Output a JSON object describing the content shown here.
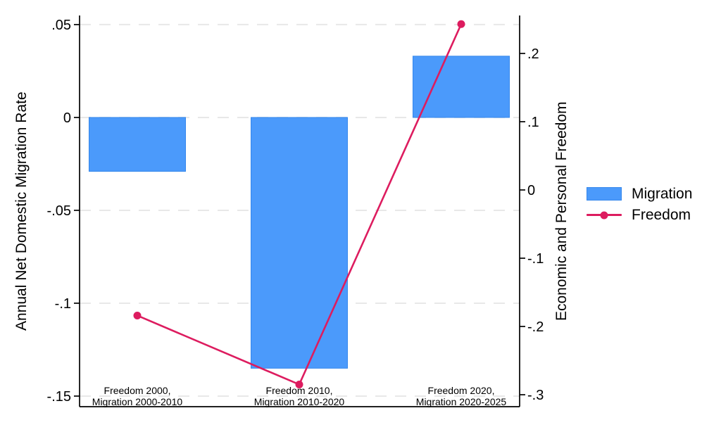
{
  "figure": {
    "background": "#ffffff",
    "text_color": "#000000"
  },
  "chart_data": {
    "type": "bar",
    "subtype": "combo-bar-line-dual-axis",
    "title": "",
    "categories": [
      [
        "Freedom 2000,",
        "Migration 2000-2010"
      ],
      [
        "Freedom 2010,",
        "Migration 2010-2020"
      ],
      [
        "Freedom 2020,",
        "Migration 2020-2025"
      ]
    ],
    "series": [
      {
        "name": "Migration",
        "type": "bar",
        "axis": "left",
        "values": [
          -0.029,
          -0.135,
          0.033
        ],
        "color": "#4B9AFB",
        "border_color": "#3587EC"
      },
      {
        "name": "Freedom",
        "type": "line",
        "axis": "right",
        "values": [
          -0.184,
          -0.285,
          0.243
        ],
        "color": "#DD1C5F",
        "marker": "circle"
      }
    ],
    "left_axis": {
      "title": "Annual Net Domestic Migration Rate",
      "tick_labels": [
        ".05",
        "0",
        "-.05",
        "-.1",
        "-.15"
      ],
      "tick_values": [
        0.05,
        0,
        -0.05,
        -0.1,
        -0.15
      ],
      "ylim": [
        -0.1557,
        0.0549
      ]
    },
    "right_axis": {
      "title": "Economic and Personal Freedom",
      "tick_labels": [
        ".2",
        ".1",
        "0",
        "-.1",
        "-.2",
        "-.3"
      ],
      "tick_values": [
        0.2,
        0.1,
        0,
        -0.1,
        -0.2,
        -0.3
      ],
      "ylim": [
        -0.3175,
        0.2556
      ]
    },
    "grid": {
      "horizontal": "on",
      "follows": "left-axis-ticks",
      "style": "dashed",
      "color": "#E8E8E8"
    },
    "legend": {
      "position": "right-middle",
      "entries": [
        "Migration",
        "Freedom"
      ]
    },
    "axis_line_color": "#000000"
  }
}
